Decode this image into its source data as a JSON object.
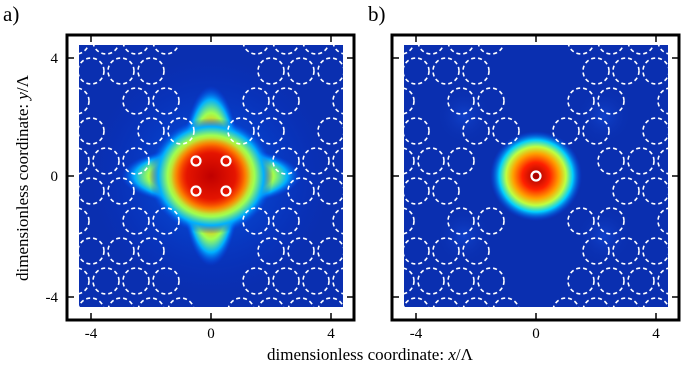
{
  "figure": {
    "panels": [
      {
        "letter": "a)",
        "description": "cross-shaped field intensity over four-core region",
        "cores": [
          [
            -0.5,
            0.5
          ],
          [
            0.5,
            0.5
          ],
          [
            -0.5,
            -0.5
          ],
          [
            0.5,
            -0.5
          ]
        ]
      },
      {
        "letter": "b)",
        "description": "localized spot on single central core",
        "cores": [
          [
            0,
            0
          ]
        ]
      }
    ],
    "x_ticks": [
      "-4",
      "0",
      "4"
    ],
    "y_ticks": [
      "4",
      "0",
      "-4"
    ],
    "xlabel_prefix": "dimensionless coordinate: ",
    "xlabel_var": "x",
    "xlabel_suffix": "/Λ",
    "ylabel_prefix": "dimensionless coordinate: ",
    "ylabel_var": "y",
    "ylabel_suffix": "/Λ",
    "lattice_holes": [
      [
        -4.5,
        4.5
      ],
      [
        -3.5,
        4.5
      ],
      [
        -2.5,
        4.5
      ],
      [
        -1.5,
        4.5
      ],
      [
        1.5,
        4.5
      ],
      [
        2.5,
        4.5
      ],
      [
        3.5,
        4.5
      ],
      [
        4.5,
        4.5
      ],
      [
        -4.0,
        3.5
      ],
      [
        -3.0,
        3.5
      ],
      [
        -2.0,
        3.5
      ],
      [
        2.0,
        3.5
      ],
      [
        3.0,
        3.5
      ],
      [
        4.0,
        3.5
      ],
      [
        -4.5,
        2.5
      ],
      [
        -2.5,
        2.5
      ],
      [
        -1.5,
        2.5
      ],
      [
        1.5,
        2.5
      ],
      [
        2.5,
        2.5
      ],
      [
        4.5,
        2.5
      ],
      [
        -4.0,
        1.5
      ],
      [
        -2.0,
        1.5
      ],
      [
        -1.0,
        1.5
      ],
      [
        1.0,
        1.5
      ],
      [
        2.0,
        1.5
      ],
      [
        4.0,
        1.5
      ],
      [
        -4.5,
        0.5
      ],
      [
        -3.5,
        0.5
      ],
      [
        -2.5,
        0.5
      ],
      [
        2.5,
        0.5
      ],
      [
        3.5,
        0.5
      ],
      [
        4.5,
        0.5
      ],
      [
        -4.0,
        -0.5
      ],
      [
        -3.0,
        -0.5
      ],
      [
        3.0,
        -0.5
      ],
      [
        4.0,
        -0.5
      ],
      [
        -4.5,
        -1.5
      ],
      [
        -2.5,
        -1.5
      ],
      [
        -1.5,
        -1.5
      ],
      [
        1.5,
        -1.5
      ],
      [
        2.5,
        -1.5
      ],
      [
        4.5,
        -1.5
      ],
      [
        -4.0,
        -2.5
      ],
      [
        -3.0,
        -2.5
      ],
      [
        -2.0,
        -2.5
      ],
      [
        2.0,
        -2.5
      ],
      [
        3.0,
        -2.5
      ],
      [
        4.0,
        -2.5
      ],
      [
        -4.5,
        -3.5
      ],
      [
        -3.5,
        -3.5
      ],
      [
        -2.5,
        -3.5
      ],
      [
        -1.5,
        -3.5
      ],
      [
        1.5,
        -3.5
      ],
      [
        2.5,
        -3.5
      ],
      [
        3.5,
        -3.5
      ],
      [
        4.5,
        -3.5
      ],
      [
        -4.0,
        -4.5
      ],
      [
        -3.0,
        -4.5
      ],
      [
        -2.0,
        -4.5
      ],
      [
        -1.0,
        -4.5
      ],
      [
        1.0,
        -4.5
      ],
      [
        2.0,
        -4.5
      ],
      [
        3.0,
        -4.5
      ],
      [
        4.0,
        -4.5
      ]
    ],
    "colors": {
      "background": "#0a2fb0",
      "colormap": [
        "#00008f",
        "#0030ff",
        "#00c8ff",
        "#40ff90",
        "#e0ff20",
        "#ff9000",
        "#e01000",
        "#a00000"
      ]
    }
  }
}
